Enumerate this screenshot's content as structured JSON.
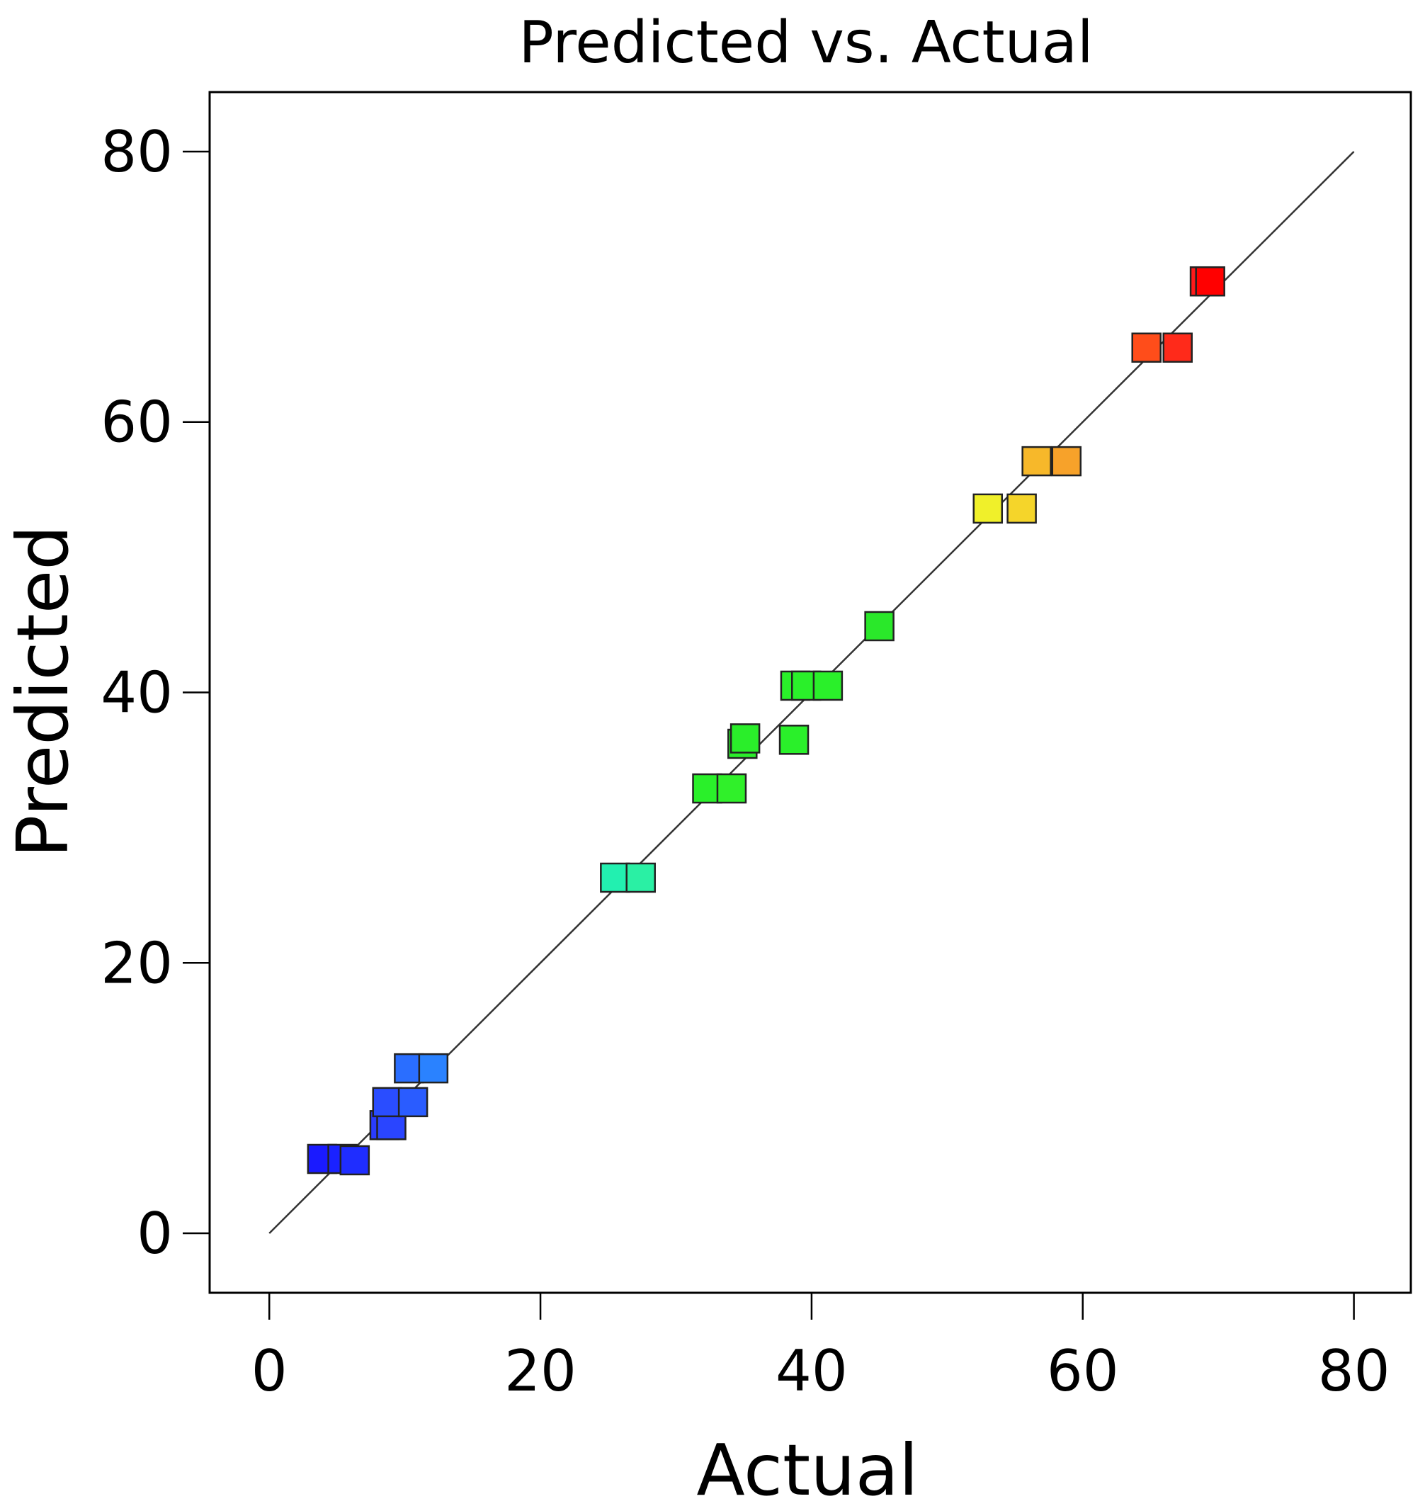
{
  "chart_data": {
    "type": "scatter",
    "title": "Predicted vs. Actual",
    "xlabel": "Actual",
    "ylabel": "Predicted",
    "xlim": [
      -4.4,
      84.2
    ],
    "ylim": [
      -4.4,
      84.4
    ],
    "xticks": [
      0,
      20,
      40,
      60,
      80
    ],
    "yticks": [
      0,
      20,
      40,
      60,
      80
    ],
    "grid": false,
    "legend": "none",
    "reference_line": {
      "from": [
        0,
        0
      ],
      "to": [
        80,
        80
      ]
    },
    "marker": "square",
    "points": [
      {
        "x": 3.9,
        "y": 5.5,
        "color": "#1a1aff"
      },
      {
        "x": 5.4,
        "y": 5.5,
        "color": "#1a22ff"
      },
      {
        "x": 6.3,
        "y": 5.4,
        "color": "#1f2dff"
      },
      {
        "x": 8.5,
        "y": 8.0,
        "color": "#2a3cff"
      },
      {
        "x": 9.0,
        "y": 8.0,
        "color": "#2a45ff"
      },
      {
        "x": 8.7,
        "y": 9.7,
        "color": "#2a4dff"
      },
      {
        "x": 10.6,
        "y": 9.7,
        "color": "#2a5cff"
      },
      {
        "x": 10.3,
        "y": 12.2,
        "color": "#2a6eff"
      },
      {
        "x": 12.1,
        "y": 12.2,
        "color": "#2a82ff"
      },
      {
        "x": 25.5,
        "y": 26.3,
        "color": "#22f0b0"
      },
      {
        "x": 27.4,
        "y": 26.3,
        "color": "#2af0a4"
      },
      {
        "x": 32.3,
        "y": 32.9,
        "color": "#2af02a"
      },
      {
        "x": 34.1,
        "y": 32.9,
        "color": "#30f02a"
      },
      {
        "x": 34.9,
        "y": 36.2,
        "color": "#2aee2a"
      },
      {
        "x": 35.1,
        "y": 36.6,
        "color": "#2aee2a"
      },
      {
        "x": 38.7,
        "y": 36.5,
        "color": "#2af02a"
      },
      {
        "x": 38.8,
        "y": 40.5,
        "color": "#2af02a"
      },
      {
        "x": 39.6,
        "y": 40.5,
        "color": "#2af02a"
      },
      {
        "x": 41.2,
        "y": 40.5,
        "color": "#2af02a"
      },
      {
        "x": 45.0,
        "y": 44.9,
        "color": "#2ae82a"
      },
      {
        "x": 53.0,
        "y": 53.6,
        "color": "#f0f02a"
      },
      {
        "x": 55.5,
        "y": 53.6,
        "color": "#f5d52a"
      },
      {
        "x": 56.6,
        "y": 57.1,
        "color": "#f7b82a"
      },
      {
        "x": 58.8,
        "y": 57.1,
        "color": "#f7a22a"
      },
      {
        "x": 64.7,
        "y": 65.5,
        "color": "#ff4d1a"
      },
      {
        "x": 67.0,
        "y": 65.5,
        "color": "#ff2a1a"
      },
      {
        "x": 69.0,
        "y": 70.4,
        "color": "#ff1a1a"
      },
      {
        "x": 69.4,
        "y": 70.4,
        "color": "#ff0000"
      }
    ]
  }
}
